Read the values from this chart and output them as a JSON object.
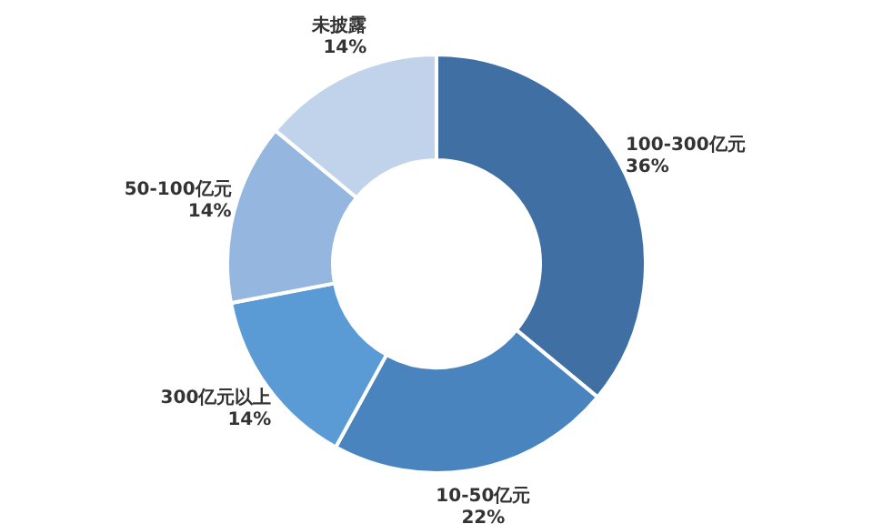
{
  "chart_data": {
    "type": "donut",
    "categories": [
      "100-300亿元",
      "10-50亿元",
      "300亿元以上",
      "50-100亿元",
      "未披露"
    ],
    "values": [
      36,
      22,
      14,
      14,
      14
    ],
    "value_labels": [
      "36%",
      "22%",
      "14%",
      "14%",
      "14%"
    ],
    "colors": [
      "#3f6fa3",
      "#4a84bf",
      "#5b9bd5",
      "#95b7df",
      "#c1d3eb"
    ]
  }
}
